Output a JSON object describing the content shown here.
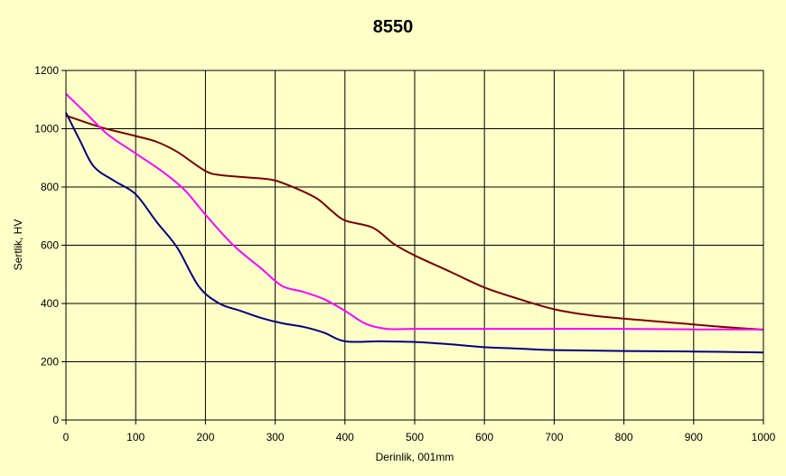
{
  "chart_data": {
    "type": "line",
    "title": "8550",
    "xlabel": "Derinlik, 001mm",
    "ylabel": "Sertlik, HV",
    "xlim": [
      0,
      1000
    ],
    "ylim": [
      0,
      1200
    ],
    "xticks": [
      0,
      100,
      200,
      300,
      400,
      500,
      600,
      700,
      800,
      900,
      1000
    ],
    "yticks": [
      0,
      200,
      400,
      600,
      800,
      1000,
      1200
    ],
    "grid": true,
    "legend": "none",
    "colors": {
      "background": "#ffffc8",
      "grid": "#000000"
    },
    "series": [
      {
        "color": "#7a0000",
        "points": [
          [
            0,
            1045
          ],
          [
            50,
            1005
          ],
          [
            100,
            975
          ],
          [
            130,
            955
          ],
          [
            160,
            920
          ],
          [
            200,
            855
          ],
          [
            225,
            840
          ],
          [
            275,
            830
          ],
          [
            300,
            822
          ],
          [
            330,
            795
          ],
          [
            360,
            760
          ],
          [
            380,
            720
          ],
          [
            400,
            685
          ],
          [
            440,
            660
          ],
          [
            470,
            605
          ],
          [
            500,
            565
          ],
          [
            550,
            510
          ],
          [
            600,
            455
          ],
          [
            650,
            415
          ],
          [
            700,
            380
          ],
          [
            750,
            360
          ],
          [
            800,
            348
          ],
          [
            850,
            338
          ],
          [
            900,
            328
          ],
          [
            950,
            318
          ],
          [
            1000,
            310
          ]
        ]
      },
      {
        "color": "#ff00ff",
        "points": [
          [
            0,
            1120
          ],
          [
            30,
            1050
          ],
          [
            60,
            980
          ],
          [
            100,
            915
          ],
          [
            140,
            850
          ],
          [
            170,
            790
          ],
          [
            200,
            705
          ],
          [
            240,
            600
          ],
          [
            280,
            520
          ],
          [
            310,
            460
          ],
          [
            340,
            440
          ],
          [
            370,
            415
          ],
          [
            400,
            375
          ],
          [
            430,
            330
          ],
          [
            460,
            313
          ],
          [
            500,
            313
          ],
          [
            600,
            313
          ],
          [
            700,
            313
          ],
          [
            800,
            313
          ],
          [
            900,
            311
          ],
          [
            1000,
            311
          ]
        ]
      },
      {
        "color": "#000080",
        "points": [
          [
            0,
            1055
          ],
          [
            20,
            960
          ],
          [
            40,
            870
          ],
          [
            70,
            820
          ],
          [
            100,
            775
          ],
          [
            130,
            680
          ],
          [
            160,
            590
          ],
          [
            190,
            460
          ],
          [
            220,
            400
          ],
          [
            250,
            375
          ],
          [
            280,
            350
          ],
          [
            310,
            332
          ],
          [
            340,
            320
          ],
          [
            370,
            300
          ],
          [
            400,
            270
          ],
          [
            450,
            270
          ],
          [
            500,
            268
          ],
          [
            550,
            260
          ],
          [
            600,
            250
          ],
          [
            650,
            245
          ],
          [
            700,
            240
          ],
          [
            800,
            237
          ],
          [
            900,
            235
          ],
          [
            1000,
            232
          ]
        ]
      }
    ]
  }
}
